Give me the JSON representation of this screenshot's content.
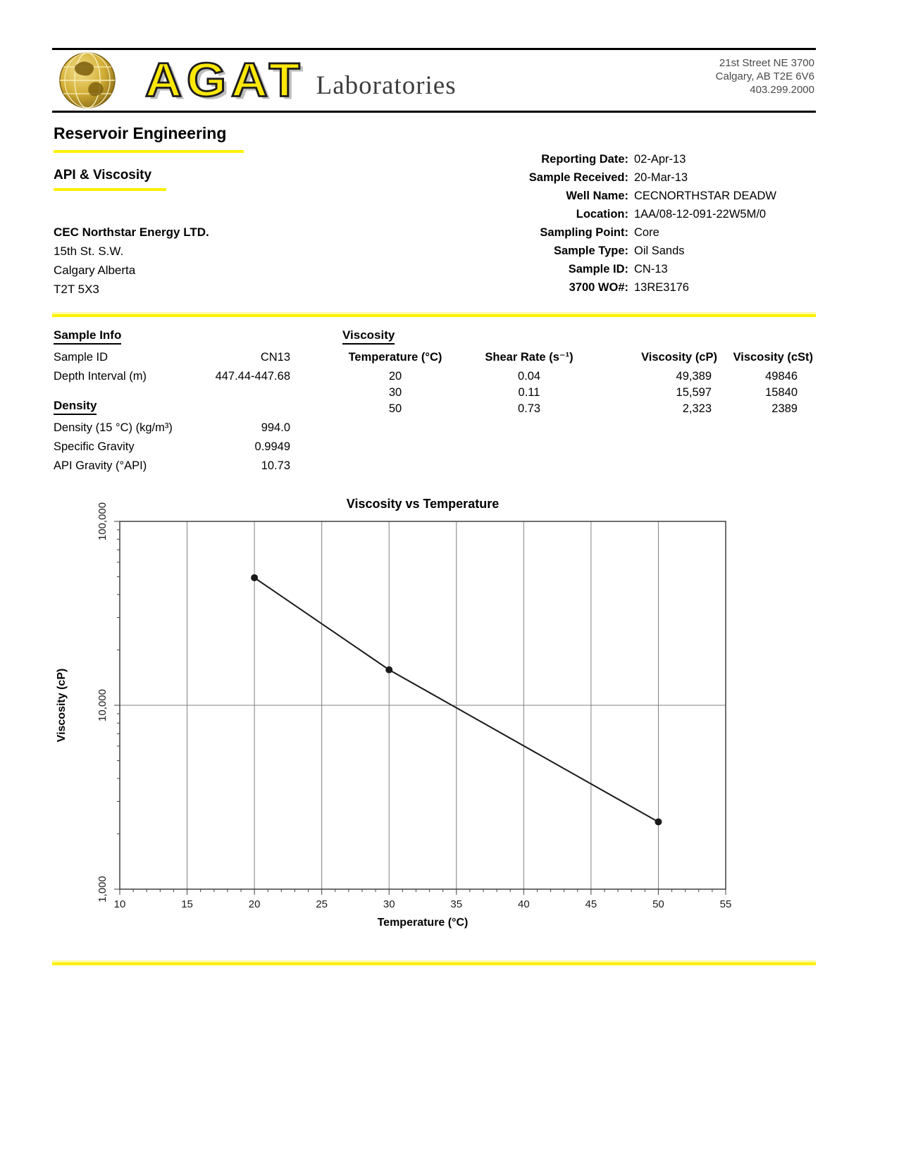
{
  "colors": {
    "accent_yellow": "#FFF000",
    "logo_gold": "#C8A22E",
    "grid_gray": "#808080",
    "axis_dark": "#404040",
    "series_black": "#1a1a1a"
  },
  "header": {
    "brand": "AGAT",
    "subtitle": "Laboratories",
    "address": [
      "21st Street NE 3700",
      "Calgary, AB T2E 6V6",
      "403.299.2000"
    ]
  },
  "titles": {
    "section": "Reservoir Engineering",
    "report": "API & Viscosity"
  },
  "meta": [
    {
      "label": "Reporting Date:",
      "value": "02-Apr-13"
    },
    {
      "label": "Sample Received:",
      "value": "20-Mar-13"
    },
    {
      "label": "Well Name:",
      "value": "CECNORTHSTAR DEADW"
    },
    {
      "label": "Location:",
      "value": "1AA/08-12-091-22W5M/0"
    },
    {
      "label": "Sampling Point:",
      "value": "Core"
    },
    {
      "label": "Sample Type:",
      "value": "Oil Sands"
    },
    {
      "label": "Sample ID:",
      "value": "CN-13"
    },
    {
      "label": "3700 WO#:",
      "value": "13RE3176"
    }
  ],
  "client": {
    "name": "CEC Northstar Energy LTD.",
    "lines": [
      "15th St. S.W.",
      "Calgary Alberta",
      "T2T 5X3"
    ]
  },
  "sample_info": {
    "heading": "Sample Info",
    "rows": [
      {
        "label": "Sample ID",
        "value": "CN13"
      },
      {
        "label": "Depth Interval (m)",
        "value": "447.44-447.68"
      }
    ]
  },
  "density": {
    "heading": "Density",
    "rows": [
      {
        "label": "Density (15 °C) (kg/m³)",
        "value": "994.0"
      },
      {
        "label": "Specific Gravity",
        "value": "0.9949"
      },
      {
        "label": "API Gravity (°API)",
        "value": "10.73"
      }
    ]
  },
  "viscosity": {
    "heading": "Viscosity",
    "columns": [
      "Temperature (°C)",
      "Shear Rate (s⁻¹)",
      "Viscosity (cP)",
      "Viscosity (cSt)"
    ],
    "rows": [
      [
        "20",
        "0.04",
        "49,389",
        "49846"
      ],
      [
        "30",
        "0.11",
        "15,597",
        "15840"
      ],
      [
        "50",
        "0.73",
        "2,323",
        "2389"
      ]
    ]
  },
  "chart_data": {
    "type": "line",
    "title": "Viscosity vs Temperature",
    "xlabel": "Temperature (°C)",
    "ylabel": "Viscosity (cP)",
    "series_name": "Viscosity (cP)",
    "x": [
      20,
      30,
      50
    ],
    "y": [
      49389,
      15597,
      2323
    ],
    "xlim": [
      10,
      55
    ],
    "x_ticks": [
      10,
      15,
      20,
      25,
      30,
      35,
      40,
      45,
      50,
      55
    ],
    "ylim": [
      1000,
      100000
    ],
    "y_scale": "log",
    "y_ticks": [
      1000,
      10000,
      100000
    ],
    "y_tick_labels": [
      "1,000",
      "10,000",
      "100,000"
    ],
    "grid": true,
    "legend": "none"
  }
}
